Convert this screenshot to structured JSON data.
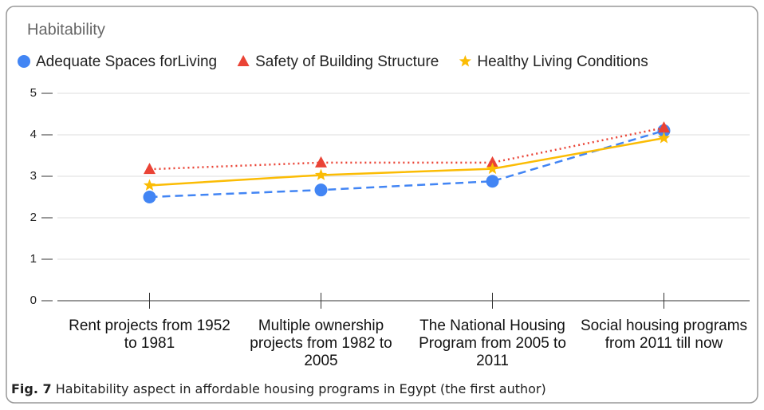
{
  "chart_data": {
    "type": "line",
    "title": "Habitability",
    "categories": [
      "Rent projects from 1952 to 1981",
      "Multiple ownership projects from 1982 to 2005",
      "The National Housing Program from 2005 to 2011",
      "Social housing programs from 2011 till now"
    ],
    "series": [
      {
        "name": "Adequate Spaces forLiving",
        "color": "#4285f4",
        "marker": "circle",
        "line_style": "dashed",
        "values": [
          2.5,
          2.67,
          2.88,
          4.1
        ]
      },
      {
        "name": "Safety of Building Structure",
        "color": "#ea4335",
        "marker": "triangle",
        "line_style": "dotted",
        "values": [
          3.17,
          3.33,
          3.33,
          4.17
        ]
      },
      {
        "name": "Healthy Living Conditions",
        "color": "#fbbc04",
        "marker": "star",
        "line_style": "solid",
        "values": [
          2.78,
          3.03,
          3.18,
          3.92
        ]
      }
    ],
    "ylim": [
      0,
      5
    ],
    "yticks": [
      0,
      1,
      2,
      3,
      4,
      5
    ],
    "grid": true,
    "legend": "top"
  },
  "caption": {
    "label": "Fig. 7",
    "text": "Habitability aspect in affordable housing programs in Egypt (the first author)"
  }
}
